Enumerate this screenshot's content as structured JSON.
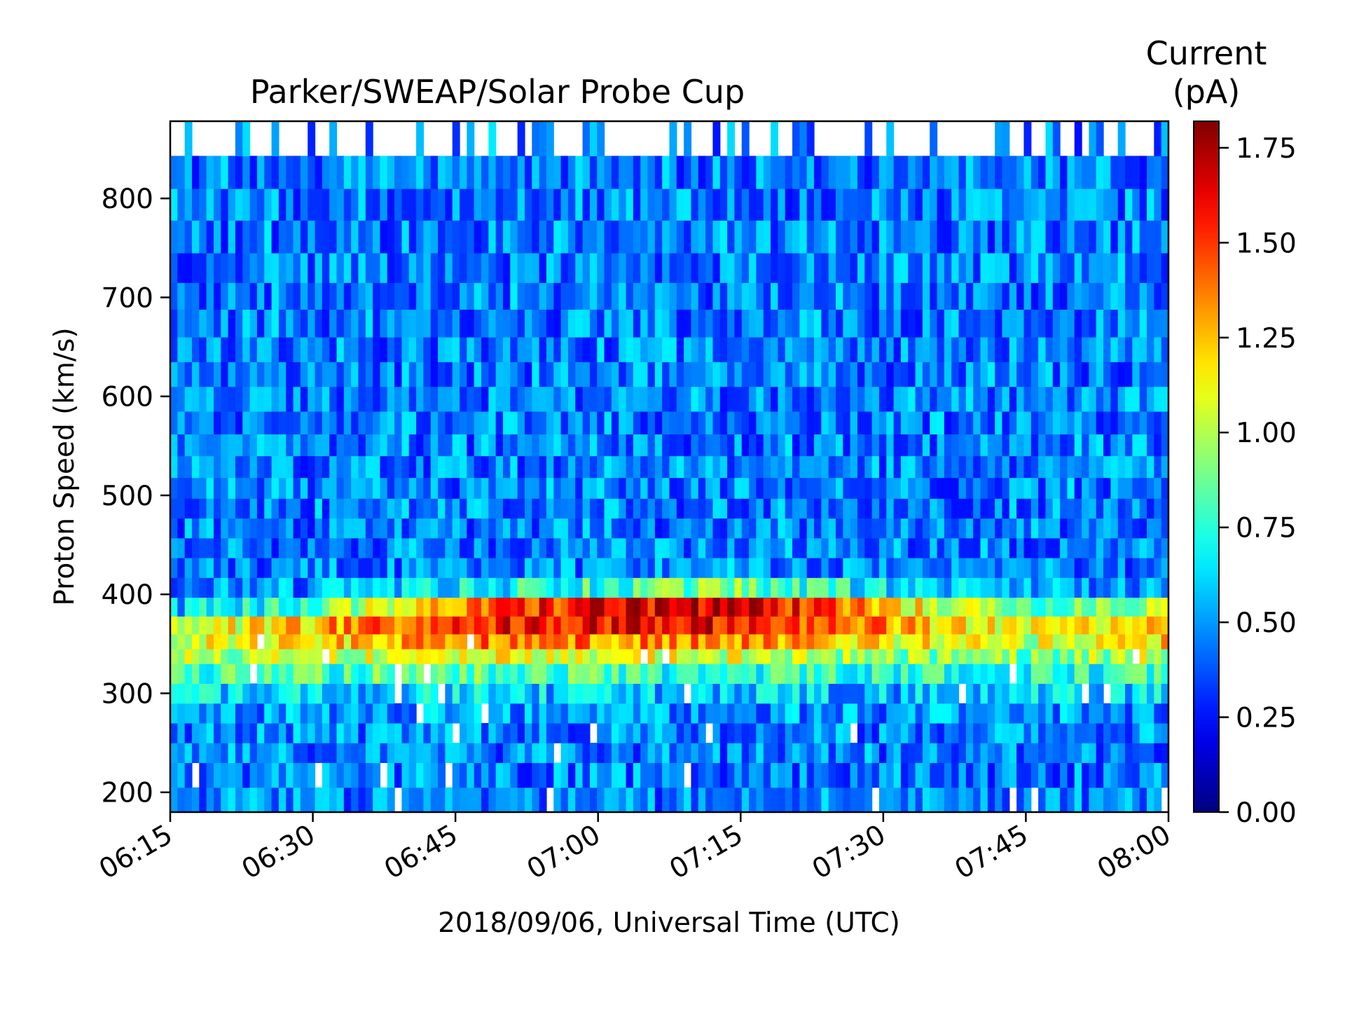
{
  "chart_data": {
    "type": "heatmap",
    "title": "Parker/SWEAP/Solar Probe Cup",
    "xlabel": "2018/09/06, Universal Time (UTC)",
    "ylabel": "Proton Speed (km/s)",
    "colorbar": {
      "label_lines": [
        "Current",
        "(pA)"
      ],
      "range": [
        0,
        1.82
      ],
      "ticks": [
        "0.00",
        "0.25",
        "0.50",
        "0.75",
        "1.00",
        "1.25",
        "1.50",
        "1.75"
      ],
      "tick_values": [
        0,
        0.25,
        0.5,
        0.75,
        1.0,
        1.25,
        1.5,
        1.75
      ],
      "colormap": "jet"
    },
    "x_range": [
      "06:15",
      "08:00"
    ],
    "x_ticks": [
      "06:15",
      "06:30",
      "06:45",
      "07:00",
      "07:15",
      "07:30",
      "07:45",
      "08:00"
    ],
    "y_range": [
      180,
      878
    ],
    "y_ticks": [
      200,
      300,
      400,
      500,
      600,
      700,
      800
    ],
    "y_bin_edges": [
      180,
      205,
      230,
      250,
      270,
      290,
      310,
      330,
      345,
      360,
      378,
      397,
      417,
      437,
      457,
      477,
      497,
      518,
      540,
      562,
      585,
      610,
      635,
      660,
      688,
      715,
      745,
      778,
      810,
      843,
      878
    ],
    "columns": 138,
    "profile_summary": [
      {
        "time": "06:15",
        "peak_speed": 360,
        "peak_current": 1.05
      },
      {
        "time": "06:30",
        "peak_speed": 370,
        "peak_current": 1.25
      },
      {
        "time": "06:45",
        "peak_speed": 378,
        "peak_current": 1.6
      },
      {
        "time": "07:00",
        "peak_speed": 382,
        "peak_current": 1.65
      },
      {
        "time": "07:15",
        "peak_speed": 385,
        "peak_current": 1.7
      },
      {
        "time": "07:30",
        "peak_speed": 380,
        "peak_current": 1.35
      },
      {
        "time": "07:45",
        "peak_speed": 372,
        "peak_current": 1.1
      },
      {
        "time": "08:00",
        "peak_speed": 372,
        "peak_current": 1.3
      }
    ],
    "background_current": 0.45,
    "grid": false
  }
}
